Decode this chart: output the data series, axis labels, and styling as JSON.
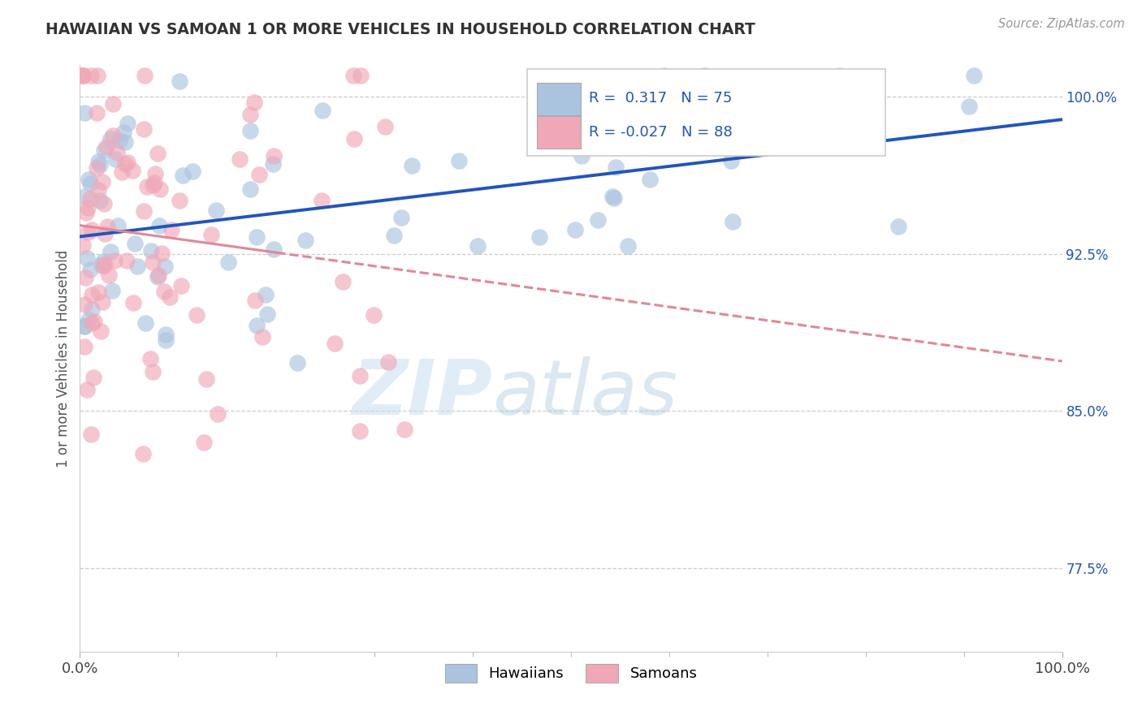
{
  "title": "HAWAIIAN VS SAMOAN 1 OR MORE VEHICLES IN HOUSEHOLD CORRELATION CHART",
  "source": "Source: ZipAtlas.com",
  "ylabel": "1 or more Vehicles in Household",
  "legend_blue_r": "0.317",
  "legend_blue_n": "75",
  "legend_pink_r": "-0.027",
  "legend_pink_n": "88",
  "legend_labels": [
    "Hawaiians",
    "Samoans"
  ],
  "yticks_right": [
    77.5,
    85.0,
    92.5,
    100.0
  ],
  "ytick_labels_right": [
    "77.5%",
    "85.0%",
    "92.5%",
    "100.0%"
  ],
  "xlim": [
    0.0,
    100.0
  ],
  "ylim": [
    73.5,
    101.5
  ],
  "blue_color": "#aac4e0",
  "pink_color": "#f0a8b8",
  "blue_line_color": "#2255bb",
  "pink_line_color": "#e08898",
  "title_color": "#333333",
  "source_color": "#999999",
  "watermark_zip": "ZIP",
  "watermark_atlas": "atlas",
  "blue_scatter_seed": 12,
  "pink_scatter_seed": 7
}
